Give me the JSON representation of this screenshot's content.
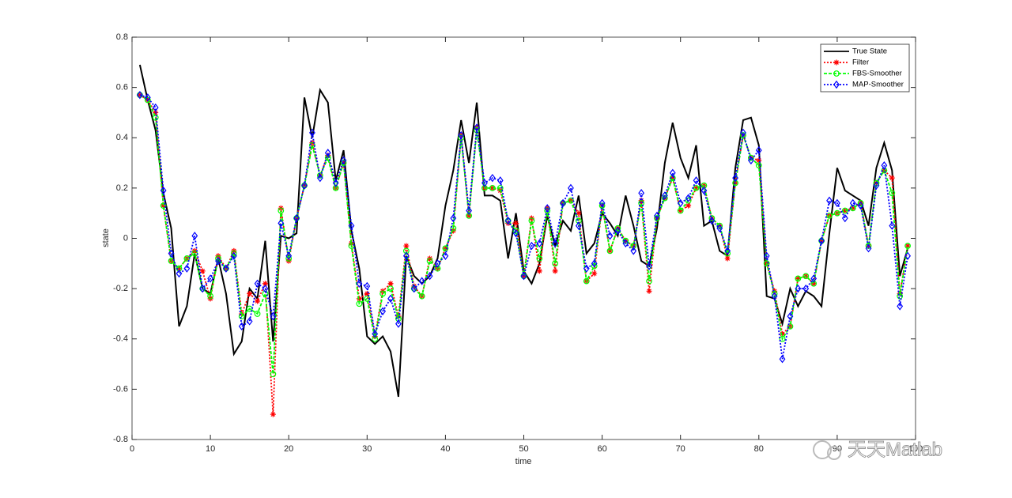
{
  "chart_data": {
    "type": "line",
    "xlabel": "time",
    "ylabel": "state",
    "watermark": "天天Matlab",
    "x": [
      1,
      2,
      3,
      4,
      5,
      6,
      7,
      8,
      9,
      10,
      11,
      12,
      13,
      14,
      15,
      16,
      17,
      18,
      19,
      20,
      21,
      22,
      23,
      24,
      25,
      26,
      27,
      28,
      29,
      30,
      31,
      32,
      33,
      34,
      35,
      36,
      37,
      38,
      39,
      40,
      41,
      42,
      43,
      44,
      45,
      46,
      47,
      48,
      49,
      50,
      51,
      52,
      53,
      54,
      55,
      56,
      57,
      58,
      59,
      60,
      61,
      62,
      63,
      64,
      65,
      66,
      67,
      68,
      69,
      70,
      71,
      72,
      73,
      74,
      75,
      76,
      77,
      78,
      79,
      80,
      81,
      82,
      83,
      84,
      85,
      86,
      87,
      88,
      89,
      90,
      91,
      92,
      93,
      94,
      95,
      96,
      97,
      98,
      99
    ],
    "xlim": [
      0,
      100
    ],
    "xticks": [
      0,
      10,
      20,
      30,
      40,
      50,
      60,
      70,
      80,
      90,
      100
    ],
    "ylim": [
      -0.8,
      0.8
    ],
    "yticks": [
      -0.8,
      -0.6,
      -0.4,
      -0.2,
      0,
      0.2,
      0.4,
      0.6,
      0.8
    ],
    "legend": "top-right",
    "series": [
      {
        "name": "True State",
        "color": "#000000",
        "dash": "solid",
        "marker": "none",
        "values": [
          0.69,
          0.55,
          0.43,
          0.18,
          0.04,
          -0.35,
          -0.27,
          -0.06,
          -0.2,
          -0.22,
          -0.08,
          -0.22,
          -0.46,
          -0.41,
          -0.2,
          -0.24,
          -0.01,
          -0.41,
          0.01,
          0.0,
          0.02,
          0.56,
          0.4,
          0.59,
          0.54,
          0.23,
          0.35,
          0.03,
          -0.12,
          -0.39,
          -0.42,
          -0.39,
          -0.45,
          -0.63,
          -0.07,
          -0.15,
          -0.18,
          -0.15,
          -0.08,
          0.13,
          0.27,
          0.47,
          0.3,
          0.54,
          0.17,
          0.17,
          0.15,
          -0.08,
          0.1,
          -0.13,
          -0.18,
          -0.1,
          0.09,
          -0.03,
          0.07,
          0.03,
          0.17,
          -0.06,
          -0.02,
          0.1,
          0.06,
          0.01,
          0.17,
          0.05,
          -0.09,
          -0.11,
          0.04,
          0.3,
          0.46,
          0.32,
          0.24,
          0.37,
          0.05,
          0.07,
          -0.05,
          -0.07,
          0.28,
          0.47,
          0.48,
          0.37,
          -0.23,
          -0.24,
          -0.34,
          -0.2,
          -0.27,
          -0.21,
          -0.23,
          -0.27,
          0.02,
          0.28,
          0.19,
          0.17,
          0.15,
          0.05,
          0.28,
          0.38,
          0.27,
          -0.15,
          -0.04
        ]
      },
      {
        "name": "Filter",
        "color": "#ff0000",
        "dash": "dotted",
        "marker": "star",
        "values": [
          0.57,
          0.55,
          0.5,
          0.13,
          -0.09,
          -0.12,
          -0.08,
          -0.05,
          -0.13,
          -0.24,
          -0.07,
          -0.12,
          -0.05,
          -0.3,
          -0.22,
          -0.25,
          -0.18,
          -0.7,
          0.12,
          -0.09,
          0.08,
          0.21,
          0.38,
          0.25,
          0.33,
          0.2,
          0.3,
          -0.02,
          -0.24,
          -0.22,
          -0.39,
          -0.21,
          -0.18,
          -0.31,
          -0.03,
          -0.19,
          -0.23,
          -0.08,
          -0.12,
          -0.04,
          0.03,
          0.41,
          0.09,
          0.44,
          0.2,
          0.2,
          0.19,
          0.06,
          0.06,
          -0.15,
          0.08,
          -0.13,
          0.12,
          -0.13,
          0.14,
          0.15,
          0.1,
          -0.17,
          -0.14,
          0.13,
          -0.05,
          0.04,
          -0.01,
          -0.03,
          0.15,
          -0.21,
          0.08,
          0.16,
          0.24,
          0.11,
          0.13,
          0.2,
          0.21,
          0.08,
          0.05,
          -0.08,
          0.22,
          0.41,
          0.32,
          0.31,
          -0.1,
          -0.21,
          -0.38,
          -0.35,
          -0.16,
          -0.15,
          -0.18,
          -0.01,
          0.09,
          0.1,
          0.11,
          0.12,
          0.14,
          -0.03,
          0.22,
          0.27,
          0.24,
          -0.22,
          -0.03
        ]
      },
      {
        "name": "FBS-Smoother",
        "color": "#00ff00",
        "dash": "dashed",
        "marker": "circle",
        "values": [
          0.57,
          0.55,
          0.48,
          0.13,
          -0.09,
          -0.12,
          -0.08,
          -0.06,
          -0.2,
          -0.23,
          -0.08,
          -0.12,
          -0.06,
          -0.31,
          -0.28,
          -0.3,
          -0.22,
          -0.54,
          0.11,
          -0.08,
          0.08,
          0.21,
          0.37,
          0.25,
          0.32,
          0.2,
          0.3,
          -0.03,
          -0.26,
          -0.24,
          -0.4,
          -0.22,
          -0.2,
          -0.32,
          -0.05,
          -0.2,
          -0.23,
          -0.09,
          -0.12,
          -0.04,
          0.04,
          0.4,
          0.09,
          0.43,
          0.2,
          0.2,
          0.2,
          0.07,
          0.03,
          -0.15,
          0.07,
          -0.08,
          0.11,
          -0.1,
          0.14,
          0.15,
          0.07,
          -0.17,
          -0.11,
          0.13,
          -0.05,
          0.04,
          -0.01,
          -0.03,
          0.14,
          -0.17,
          0.08,
          0.16,
          0.24,
          0.11,
          0.15,
          0.2,
          0.21,
          0.08,
          0.05,
          -0.06,
          0.22,
          0.41,
          0.32,
          0.29,
          -0.1,
          -0.22,
          -0.4,
          -0.35,
          -0.16,
          -0.15,
          -0.18,
          -0.01,
          0.09,
          0.1,
          0.11,
          0.12,
          0.14,
          -0.03,
          0.22,
          0.27,
          0.18,
          -0.23,
          -0.03
        ]
      },
      {
        "name": "MAP-Smoother",
        "color": "#0000ff",
        "dash": "dotted",
        "marker": "diamond",
        "values": [
          0.57,
          0.56,
          0.52,
          0.19,
          -0.06,
          -0.14,
          -0.12,
          0.01,
          -0.2,
          -0.16,
          -0.09,
          -0.12,
          -0.07,
          -0.35,
          -0.33,
          -0.18,
          -0.2,
          -0.31,
          0.06,
          -0.07,
          0.08,
          0.21,
          0.42,
          0.24,
          0.34,
          0.22,
          0.31,
          0.05,
          -0.18,
          -0.19,
          -0.38,
          -0.29,
          -0.24,
          -0.34,
          -0.07,
          -0.2,
          -0.17,
          -0.15,
          -0.1,
          -0.07,
          0.08,
          0.41,
          0.11,
          0.44,
          0.22,
          0.24,
          0.23,
          0.07,
          0.02,
          -0.15,
          -0.03,
          -0.02,
          0.12,
          -0.02,
          0.14,
          0.2,
          0.05,
          -0.12,
          -0.1,
          0.14,
          0.01,
          0.03,
          -0.02,
          -0.05,
          0.18,
          -0.11,
          0.09,
          0.17,
          0.26,
          0.14,
          0.16,
          0.23,
          0.19,
          0.07,
          0.04,
          -0.05,
          0.24,
          0.42,
          0.31,
          0.35,
          -0.07,
          -0.23,
          -0.48,
          -0.31,
          -0.2,
          -0.2,
          -0.16,
          -0.01,
          0.15,
          0.14,
          0.08,
          0.14,
          0.13,
          -0.04,
          0.21,
          0.29,
          0.05,
          -0.27,
          -0.07
        ]
      }
    ]
  }
}
